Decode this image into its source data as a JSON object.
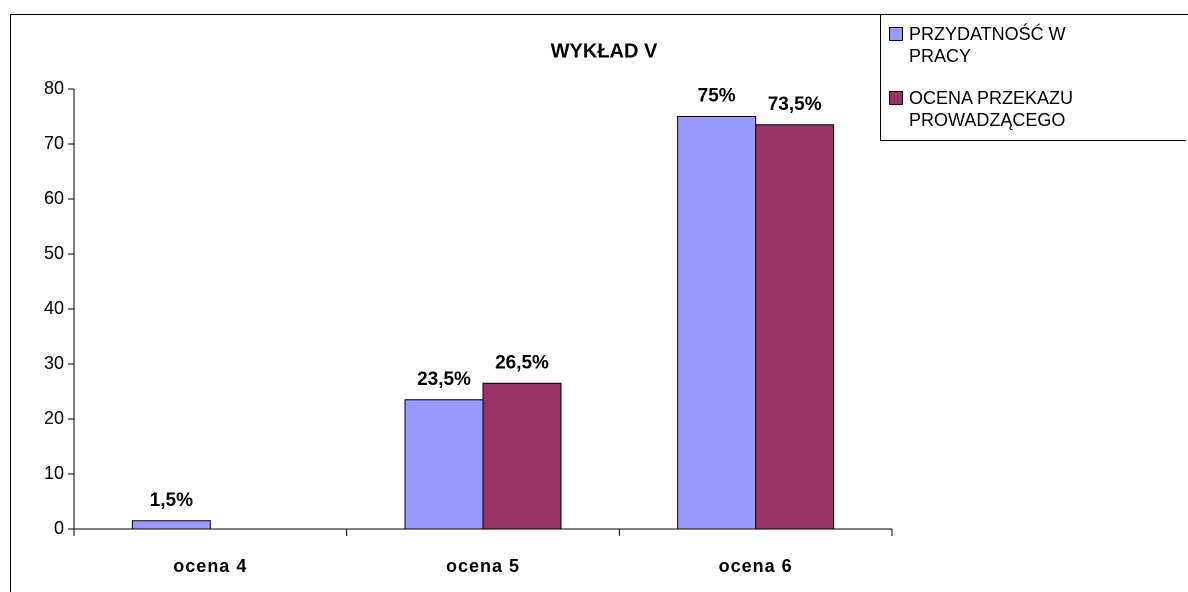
{
  "chart_data": {
    "type": "bar",
    "title": "WYKŁAD V",
    "categories": [
      "ocena 4",
      "ocena 5",
      "ocena 6"
    ],
    "series": [
      {
        "name": "PRZYDATNOŚĆ W PRACY",
        "color": "#9999ff",
        "values": [
          1.5,
          23.5,
          75
        ],
        "value_labels": [
          "1,5%",
          "23,5%",
          "75%"
        ]
      },
      {
        "name": "OCENA PRZEKAZU PROWADZĄCEGO",
        "color": "#993366",
        "values": [
          null,
          26.5,
          73.5
        ],
        "value_labels": [
          null,
          "26,5%",
          "73,5%"
        ]
      }
    ],
    "ylim": [
      0,
      80
    ],
    "yticks": [
      0,
      10,
      20,
      30,
      40,
      50,
      60,
      70,
      80
    ],
    "grid": false,
    "legend": "top-right"
  }
}
